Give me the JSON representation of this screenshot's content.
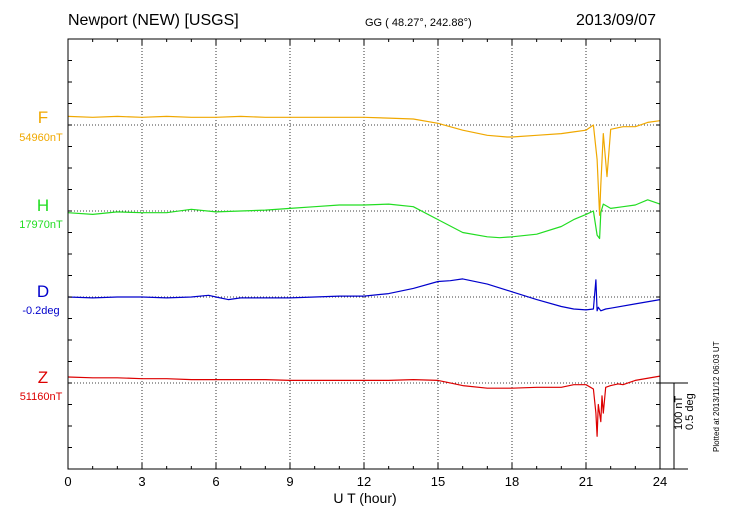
{
  "header": {
    "station": "Newport (NEW)  [USGS]",
    "coords": "GG ( 48.27°, 242.88°)",
    "date": "2013/09/07"
  },
  "channels": [
    {
      "name": "F",
      "baseline": "54960nT",
      "color": "#f0a800"
    },
    {
      "name": "H",
      "baseline": "17970nT",
      "color": "#22dd22"
    },
    {
      "name": "D",
      "baseline": "-0.2deg",
      "color": "#0000cc"
    },
    {
      "name": "Z",
      "baseline": "51160nT",
      "color": "#dd0000"
    }
  ],
  "x_axis": {
    "label": "U T (hour)",
    "ticks": [
      "0",
      "3",
      "6",
      "9",
      "12",
      "15",
      "18",
      "21",
      "24"
    ]
  },
  "scale": {
    "line1": "100 nT",
    "line2": "0.5 deg"
  },
  "footer": {
    "plotted": "Plotted at 2013/11/12 06:03 UT"
  },
  "chart_data": {
    "type": "line",
    "xlabel": "U T (hour)",
    "xlim": [
      0,
      24
    ],
    "grid": true,
    "series": [
      {
        "name": "F",
        "color": "#f0a800",
        "x": [
          0,
          1,
          2,
          3,
          4,
          5,
          6,
          7,
          8,
          9,
          10,
          11,
          12,
          13,
          14,
          15,
          16,
          17,
          17.8,
          18,
          19,
          20,
          20.5,
          21,
          21.3,
          21.45,
          21.55,
          21.6,
          21.7,
          21.85,
          22,
          22.5,
          23,
          23.5,
          24
        ],
        "y": [
          10,
          9,
          10,
          9,
          10,
          9,
          9,
          10,
          9,
          9,
          9,
          9,
          9,
          8,
          7,
          2,
          -6,
          -12,
          -14,
          -14,
          -12,
          -10,
          -8,
          -6,
          0,
          -40,
          -105,
          -70,
          -10,
          -60,
          -5,
          -2,
          -2,
          3,
          5
        ]
      },
      {
        "name": "H",
        "color": "#22dd22",
        "x": [
          0,
          1,
          2,
          3,
          4,
          5,
          6,
          7,
          8,
          9,
          10,
          11,
          12,
          13,
          14,
          15,
          16,
          17,
          17.5,
          18,
          19,
          20,
          20.5,
          21,
          21.3,
          21.45,
          21.55,
          21.6,
          21.7,
          22,
          22.5,
          23,
          23.5,
          24
        ],
        "y": [
          -2,
          -4,
          -1,
          -2,
          -2,
          2,
          -1,
          0,
          1,
          3,
          5,
          7,
          7,
          8,
          5,
          -10,
          -25,
          -30,
          -31,
          -30,
          -27,
          -18,
          -10,
          -4,
          0,
          -28,
          -32,
          -2,
          8,
          3,
          5,
          7,
          13,
          8
        ]
      },
      {
        "name": "D",
        "color": "#0000cc",
        "x": [
          0,
          1,
          2,
          3,
          4,
          5,
          5.7,
          6,
          6.5,
          7,
          8,
          9,
          10,
          11,
          12,
          13,
          14,
          15,
          15.5,
          16,
          17,
          18,
          19,
          20,
          20.5,
          21,
          21.3,
          21.4,
          21.45,
          21.5,
          21.6,
          21.8,
          22,
          23,
          24
        ],
        "y": [
          0,
          -1,
          0,
          0,
          -1,
          0,
          2,
          0,
          -3,
          -1,
          -1,
          -1,
          0,
          1,
          1,
          4,
          10,
          18,
          19,
          21,
          15,
          6,
          -3,
          -11,
          -14,
          -15,
          -14,
          20,
          -16,
          -12,
          -16,
          -14,
          -13,
          -8,
          -3
        ]
      },
      {
        "name": "Z",
        "color": "#dd0000",
        "x": [
          0,
          1,
          2,
          3,
          4,
          5,
          6,
          7,
          8,
          9,
          10,
          11,
          12,
          13,
          14,
          15,
          16,
          17,
          17.7,
          18,
          19,
          20,
          20.5,
          21,
          21.3,
          21.4,
          21.45,
          21.5,
          21.6,
          21.65,
          21.7,
          21.8,
          22,
          22.3,
          22.5,
          23,
          24
        ],
        "y": [
          7,
          6,
          6,
          5,
          5,
          4,
          4,
          4,
          4,
          3,
          3,
          3,
          3,
          3,
          4,
          3,
          -3,
          -6,
          -6,
          -6,
          -5,
          -5,
          -2,
          -2,
          -7,
          -35,
          -62,
          -25,
          -45,
          -15,
          -35,
          -5,
          -3,
          -1,
          -2,
          3,
          8
        ]
      }
    ]
  }
}
